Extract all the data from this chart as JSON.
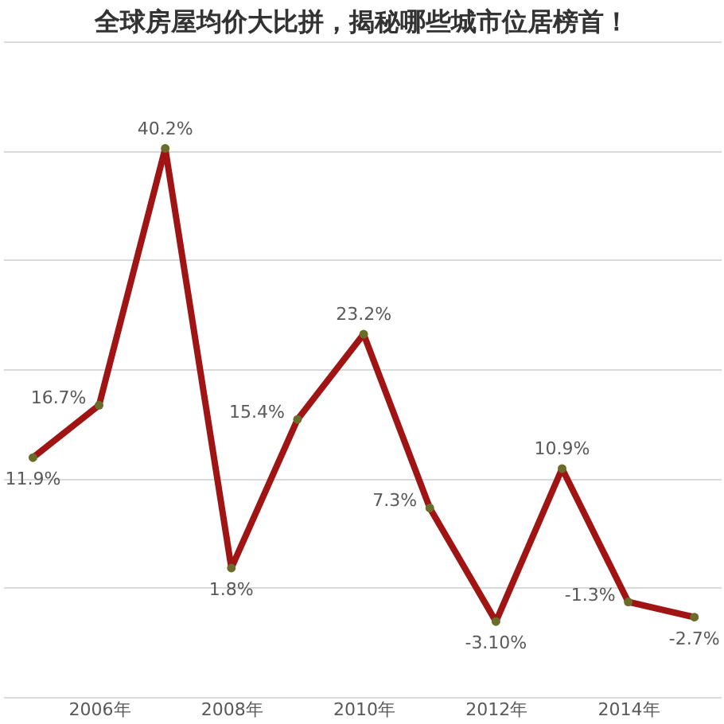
{
  "chart_data": {
    "type": "line",
    "title": "全球房屋均价大比拼，揭秘哪些城市位居榜首！",
    "x": [
      2005,
      2006,
      2007,
      2008,
      2009,
      2010,
      2011,
      2012,
      2013,
      2014,
      2015
    ],
    "series": [
      {
        "color": "#a01414",
        "values": [
          11.9,
          16.7,
          40.2,
          1.8,
          15.4,
          23.2,
          7.3,
          -3.1,
          10.9,
          -1.3,
          -2.7
        ],
        "value_labels": [
          "11.9%",
          "16.7%",
          "40.2%",
          "1.8%",
          "15.4%",
          "23.2%",
          "7.3%",
          "-3.10%",
          "10.9%",
          "-1.3%",
          "-2.7%"
        ]
      }
    ],
    "xlim": [
      2004.55,
      2015.4
    ],
    "xticks": [
      {
        "value": 2006,
        "label": "2006年"
      },
      {
        "value": 2008,
        "label": "2008年"
      },
      {
        "value": 2010,
        "label": "2010年"
      },
      {
        "value": 2012,
        "label": "2012年"
      },
      {
        "value": 2014,
        "label": "2014年"
      }
    ],
    "ylim": [
      -10,
      50
    ],
    "yticks": [
      {
        "value": -10,
        "label": null
      },
      {
        "value": 0,
        "label": null
      },
      {
        "value": 10,
        "label": null
      },
      {
        "value": 20,
        "label": null
      },
      {
        "value": 30,
        "label": null
      },
      {
        "value": 40,
        "label": null
      },
      {
        "value": 50,
        "label": null
      }
    ],
    "grid": "y",
    "marker": "circle",
    "line_style": "solid",
    "tick_labels": "x"
  }
}
